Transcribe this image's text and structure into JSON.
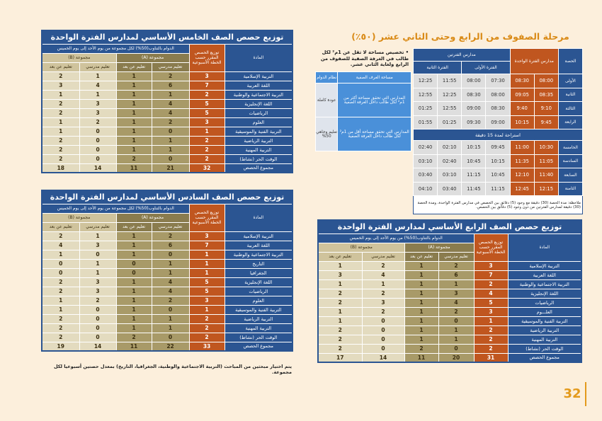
{
  "hdr": {
    "subject": "المادة",
    "total": "توزيع الحصص المقرر حسب الخطة الأسبوعية",
    "rotation": "الدوام بالتناوب(50%) لكل مجموعة من يوم الأحد إلى يوم الخميس",
    "rotation4": "الدوام بالتناوب(50%) من يوم الأحد إلى يوم الخميس",
    "ga": "مجموعة (A)",
    "gb": "مجموعة (B)",
    "school": "تعليم مدرسي",
    "remote": "تعليم عن بعد"
  },
  "grade5": {
    "title": "توزيع حصص الصف الخامس الأساسي لمدارس الفترة الواحدة",
    "rows": [
      [
        "التربية الإسلامية",
        "3",
        "2",
        "1",
        "1",
        "2"
      ],
      [
        "اللغة العربية",
        "7",
        "6",
        "1",
        "4",
        "3"
      ],
      [
        "التربية الاجتماعية والوطنية",
        "2",
        "1",
        "1",
        "1",
        "1"
      ],
      [
        "اللغة الإنجليزية",
        "5",
        "4",
        "1",
        "3",
        "2"
      ],
      [
        "الرياضيات",
        "5",
        "4",
        "1",
        "3",
        "2"
      ],
      [
        "العلوم",
        "3",
        "2",
        "1",
        "2",
        "1"
      ],
      [
        "التربية الفنية والموسيقية",
        "1",
        "0",
        "1",
        "0",
        "1"
      ],
      [
        "التربية الرياضية",
        "2",
        "1",
        "1",
        "0",
        "2"
      ],
      [
        "التربية المهنية",
        "2",
        "1",
        "1",
        "0",
        "2"
      ],
      [
        "الوقت الحر (نشاط)",
        "2",
        "0",
        "2",
        "0",
        "2"
      ],
      [
        "مجموع الحصص",
        "32",
        "21",
        "11",
        "14",
        "18"
      ]
    ]
  },
  "grade6": {
    "title": "توزيع حصص الصف السادس الأساسي لمدارس الفترة الواحدة",
    "rows": [
      [
        "التربية الإسلامية",
        "3",
        "2",
        "1",
        "1",
        "2"
      ],
      [
        "اللغة العربية",
        "7",
        "6",
        "1",
        "3",
        "4"
      ],
      [
        "التربية الاجتماعية والوطنية",
        "1",
        "0",
        "1",
        "0",
        "1"
      ],
      [
        "التاريخ",
        "1",
        "1",
        "0",
        "1",
        "0"
      ],
      [
        "الجغرافيا",
        "1",
        "1",
        "0",
        "1",
        "0"
      ],
      [
        "اللغة الإنجليزية",
        "5",
        "4",
        "1",
        "3",
        "2"
      ],
      [
        "الرياضيات",
        "5",
        "4",
        "1",
        "3",
        "2"
      ],
      [
        "العلوم",
        "3",
        "2",
        "1",
        "2",
        "1"
      ],
      [
        "التربية الفنية والموسيقية",
        "1",
        "0",
        "1",
        "0",
        "1"
      ],
      [
        "التربية الرياضية",
        "2",
        "1",
        "1",
        "0",
        "2"
      ],
      [
        "التربية المهنية",
        "2",
        "1",
        "1",
        "0",
        "2"
      ],
      [
        "الوقت الحر (نشاط)",
        "2",
        "0",
        "2",
        "0",
        "2"
      ],
      [
        "مجموع الحصص",
        "33",
        "22",
        "11",
        "14",
        "19"
      ]
    ],
    "note": "يتم اختيار مبحثين من المباحث (التربية الاجتماعية والوطنية، الجغرافيا، التاريخ) بمعدل حصتين أسبوعيا لكل مجموعة."
  },
  "grade4": {
    "title": "توزيع حصص الصف الرابع الأساسي لمدارس الفترة الواحدة",
    "rows": [
      [
        "التربية الإسلامية",
        "3",
        "2",
        "1",
        "2",
        "1"
      ],
      [
        "اللغة العربية",
        "7",
        "6",
        "1",
        "4",
        "3"
      ],
      [
        "التربية الاجتماعية والوطنية",
        "2",
        "1",
        "1",
        "1",
        "1"
      ],
      [
        "اللغة الإنجليزية",
        "4",
        "3",
        "1",
        "2",
        "2"
      ],
      [
        "الرياضيات",
        "5",
        "4",
        "1",
        "3",
        "2"
      ],
      [
        "العلـــوم",
        "3",
        "2",
        "1",
        "2",
        "1"
      ],
      [
        "التربية الفنية والموسيقية",
        "1",
        "0",
        "1",
        "0",
        "1"
      ],
      [
        "التربية الرياضية",
        "2",
        "1",
        "1",
        "0",
        "2"
      ],
      [
        "التربية المهنية",
        "2",
        "1",
        "1",
        "0",
        "2"
      ],
      [
        "الوقت الحر (نشاط)",
        "2",
        "0",
        "2",
        "0",
        "2"
      ],
      [
        "مجموع الحصص",
        "31",
        "20",
        "11",
        "14",
        "17"
      ]
    ]
  },
  "stage_title": "مرحلة الصفوف من الرابع وحتى الثاني عشر (٥٠٪)",
  "timetable": {
    "h_period": "الحصة",
    "h_single": "مدارس الفترة الواحدة",
    "h_double": "مدارس الفترتين",
    "h_first": "الفترة الأولى",
    "h_second": "الفترة الثانية",
    "rows": [
      [
        "الأولى",
        "08:00",
        "08:30",
        "07:30",
        "08:00",
        "11:55",
        "12:25"
      ],
      [
        "الثانية",
        "08:35",
        "09:05",
        "08:00",
        "08:30",
        "12:25",
        "12:55"
      ],
      [
        "الثالثة",
        "9:10",
        "9:40",
        "08:30",
        "09:00",
        "12:55",
        "01:25"
      ],
      [
        "الرابعة",
        "9:45",
        "10:15",
        "09:00",
        "09:30",
        "01:25",
        "01:55"
      ]
    ],
    "break": "استراحة لمدة 15 دقيقة",
    "rows2": [
      [
        "الخامسة",
        "10:30",
        "11:00",
        "09:45",
        "10:15",
        "02:10",
        "02:40"
      ],
      [
        "السادسة",
        "11:05",
        "11:35",
        "10:15",
        "10:45",
        "02:40",
        "03:10"
      ],
      [
        "السابعة",
        "11:40",
        "12:10",
        "10:45",
        "11:15",
        "03:10",
        "03:40"
      ],
      [
        "الثامنة",
        "12:15",
        "12:45",
        "11:15",
        "11:45",
        "03:40",
        "04:10"
      ]
    ],
    "note": "ملاحظة: مدة الحصة (30) دقيقة مع وجود (5) دقائق بين الحصص في مدارس الفترة الواحدة، ومدة الحصة (30) دقيقة لمدارس الفترتين من دون وجود (5) دقائق بين الحصص."
  },
  "side": {
    "bullet": "• تخصيص مساحة لا تقل عن 1م² لكل طالب في الغرفة الصفية للصفوف من الرابع ولغاية الثاني عشر.",
    "h_area": "مساحة الغرف الصفية",
    "h_system": "نظام الدوام",
    "r1_area": "المدارس التي تحقق مساحة أكثر من 1م² لكل طالب داخل الغرفة الصفية",
    "r1_system": "عودة كاملة",
    "r2_area": "المدارس التي تحقق مساحة أقل من 1م² لكل طالب داخل الغرفة الصفية",
    "r2_system": "تعليم وجاهي 50%"
  },
  "page_number": "32"
}
